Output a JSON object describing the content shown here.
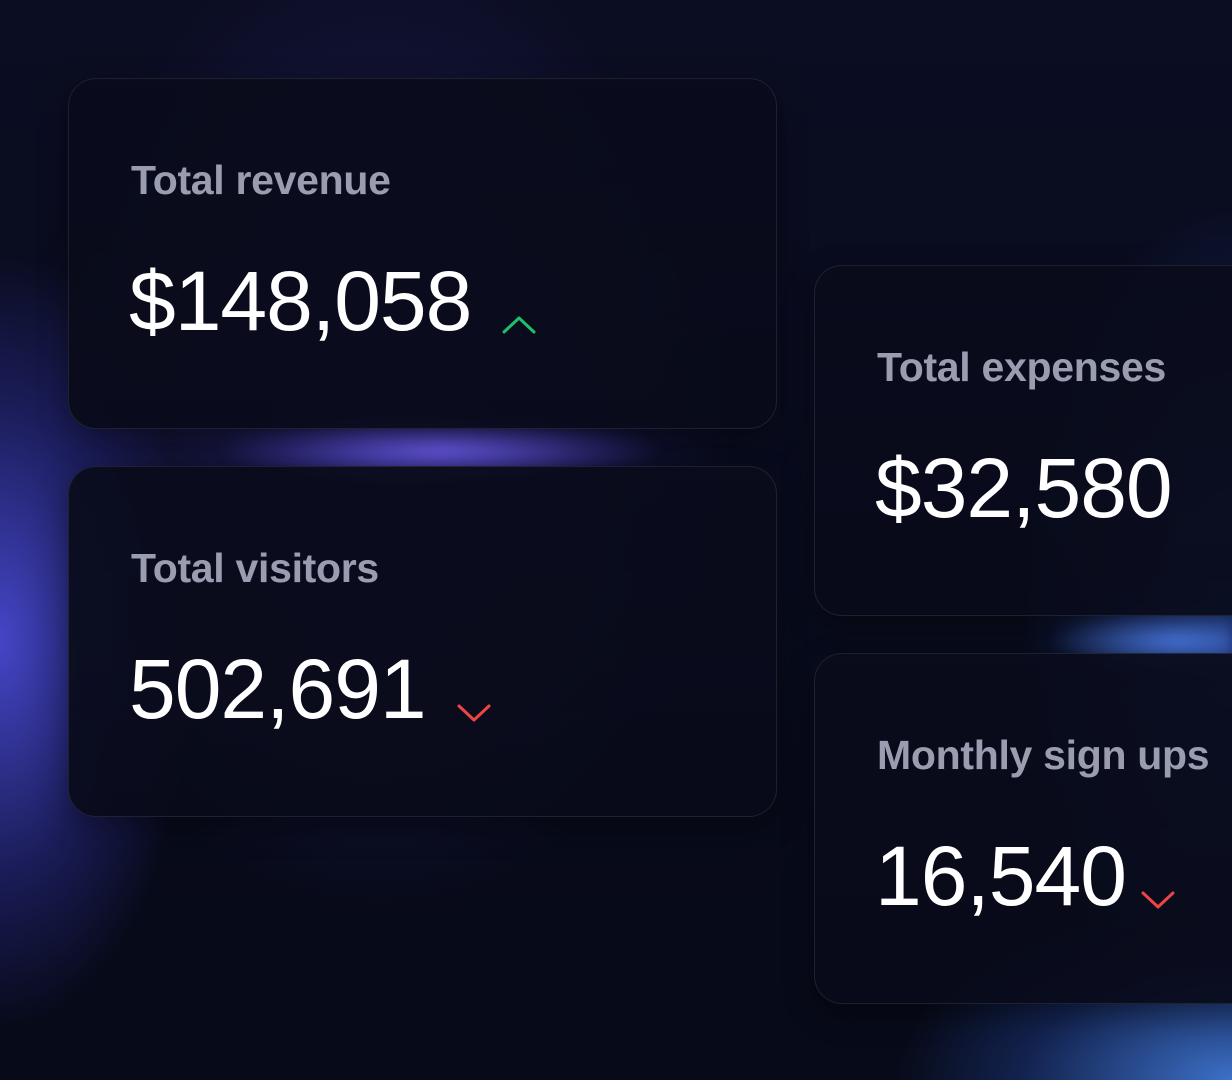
{
  "cards": [
    {
      "label": "Total revenue",
      "value": "$148,058",
      "trend": "up",
      "trend_icon": "chevron-up-icon",
      "trend_color": "#1fbf6a"
    },
    {
      "label": "Total visitors",
      "value": "502,691",
      "trend": "down",
      "trend_icon": "chevron-down-icon",
      "trend_color": "#ef4444"
    },
    {
      "label": "Total expenses",
      "value": "$32,580"
    },
    {
      "label": "Monthly sign ups",
      "value": "16,540",
      "trend": "down",
      "trend_icon": "chevron-down-icon",
      "trend_color": "#ef4444"
    }
  ],
  "colors": {
    "background": "#070a18",
    "label": "#9a9cb0",
    "value": "#ffffff"
  }
}
